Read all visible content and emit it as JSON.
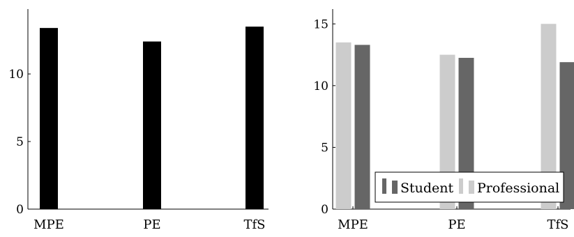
{
  "chart_data": [
    {
      "type": "bar",
      "categories": [
        "MPE",
        "PE",
        "TfS"
      ],
      "values": [
        13.4,
        12.4,
        13.5
      ],
      "color": "#000000",
      "ylim": [
        0,
        14.8
      ],
      "yticks": [
        0,
        5,
        10
      ],
      "title": "",
      "xlabel": "",
      "ylabel": "",
      "grid": false,
      "legend": "none"
    },
    {
      "type": "bar",
      "categories": [
        "MPE",
        "PE",
        "TfS"
      ],
      "series": [
        {
          "name": "Professional",
          "values": [
            13.5,
            12.5,
            15.0
          ],
          "color": "#cccccc"
        },
        {
          "name": "Student",
          "values": [
            13.3,
            12.25,
            11.9
          ],
          "color": "#666666"
        }
      ],
      "ylim": [
        0,
        16.2
      ],
      "yticks": [
        0,
        5,
        10,
        15
      ],
      "legend_entries": [
        "Student",
        "Professional"
      ],
      "legend": "bottom-right",
      "title": "",
      "xlabel": "",
      "ylabel": "",
      "grid": false
    }
  ]
}
